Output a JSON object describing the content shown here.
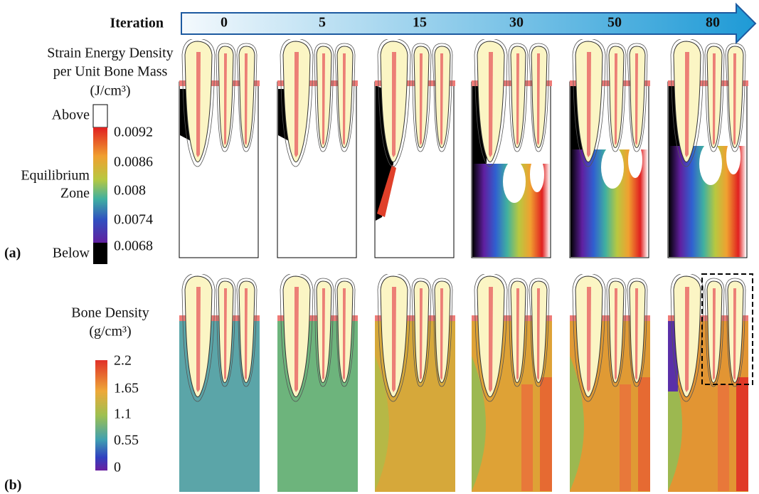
{
  "header": {
    "title": "Iteration",
    "iterations": [
      "0",
      "5",
      "15",
      "30",
      "50",
      "80"
    ]
  },
  "panel_a": {
    "label": "(a)",
    "title_lines": [
      "Strain Energy Density",
      "per Unit Bone Mass",
      "(J/cm³)"
    ],
    "colorbar": {
      "top": "Above",
      "middle_lines": [
        "Equilibrium",
        "Zone"
      ],
      "bottom": "Below",
      "ticks": [
        "0.0092",
        "0.0086",
        "0.008",
        "0.0074",
        "0.0068"
      ]
    }
  },
  "panel_b": {
    "label": "(b)",
    "title_lines": [
      "Bone Density",
      "(g/cm³)"
    ],
    "colorbar": {
      "ticks": [
        "2.2",
        "1.65",
        "1.1",
        "0.55",
        "0"
      ]
    }
  }
}
